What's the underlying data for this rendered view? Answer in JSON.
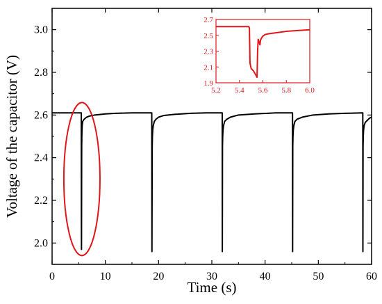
{
  "colors": {
    "main_series": "#000000",
    "inset_accent": "#e0161b",
    "background": "#ffffff"
  },
  "chart_data": [
    {
      "type": "line",
      "title": "",
      "xlabel": "Time (s)",
      "ylabel": "Voltage of the capacitor (V)",
      "xlim": [
        0,
        60
      ],
      "ylim": [
        1.9,
        3.1
      ],
      "xticks": [
        0,
        10,
        20,
        30,
        40,
        50,
        60
      ],
      "yticks": [
        2.0,
        2.2,
        2.4,
        2.6,
        2.8,
        3.0
      ],
      "xtick_labels": [
        "0",
        "10",
        "20",
        "30",
        "40",
        "50",
        "60"
      ],
      "ytick_labels": [
        "2.0",
        "2.2",
        "2.4",
        "2.6",
        "2.8",
        "3.0"
      ],
      "legend": "none",
      "grid": false,
      "series": [
        {
          "x": [
            0,
            5.2,
            5.48,
            5.5,
            5.52,
            5.55,
            5.56,
            5.6,
            5.65,
            5.75,
            6.0,
            6.5,
            7,
            8,
            10,
            12,
            15,
            18.72,
            18.75,
            18.8,
            18.84,
            18.9,
            19.0,
            19.2,
            19.5,
            20,
            21,
            23,
            26,
            29,
            31.95,
            31.97,
            32.0,
            32.04,
            32.1,
            32.2,
            32.4,
            32.8,
            33.5,
            35,
            38,
            42,
            45.15,
            45.17,
            45.2,
            45.24,
            45.3,
            45.4,
            45.6,
            46.0,
            47,
            49,
            52,
            55,
            58.35,
            58.37,
            58.4,
            58.44,
            58.5,
            58.6,
            58.8,
            59.2,
            59.6,
            60
          ],
          "y": [
            2.61,
            2.61,
            2.61,
            2.1,
            1.97,
            2.35,
            2.45,
            2.52,
            2.55,
            2.57,
            2.58,
            2.59,
            2.595,
            2.6,
            2.605,
            2.608,
            2.61,
            2.61,
            1.96,
            2.45,
            2.5,
            2.53,
            2.55,
            2.57,
            2.58,
            2.59,
            2.598,
            2.603,
            2.608,
            2.61,
            2.61,
            1.96,
            2.45,
            2.5,
            2.53,
            2.55,
            2.57,
            2.58,
            2.59,
            2.6,
            2.605,
            2.61,
            2.61,
            1.96,
            2.45,
            2.5,
            2.53,
            2.55,
            2.57,
            2.58,
            2.59,
            2.6,
            2.605,
            2.608,
            2.61,
            1.96,
            2.45,
            2.5,
            2.53,
            2.55,
            2.565,
            2.575,
            2.585,
            2.59
          ]
        }
      ],
      "annotations": [
        {
          "type": "ellipse-highlight",
          "x_center": 5.6,
          "y_center": 2.3,
          "color": "#e0161b"
        }
      ]
    },
    {
      "type": "line",
      "title": "",
      "xlabel": "",
      "ylabel": "",
      "xlim": [
        5.2,
        6.0
      ],
      "ylim": [
        1.9,
        2.7
      ],
      "xticks": [
        5.2,
        5.4,
        5.6,
        5.8,
        6.0
      ],
      "yticks": [
        1.9,
        2.1,
        2.3,
        2.5,
        2.7
      ],
      "xtick_labels": [
        "5.2",
        "5.4",
        "5.6",
        "5.8",
        "6.0"
      ],
      "ytick_labels": [
        "1.9",
        "2.1",
        "2.3",
        "2.5",
        "2.7"
      ],
      "legend": "none",
      "grid": false,
      "series": [
        {
          "x": [
            5.2,
            5.48,
            5.485,
            5.49,
            5.5,
            5.52,
            5.55,
            5.555,
            5.56,
            5.575,
            5.58,
            5.59,
            5.6,
            5.62,
            5.65,
            5.7,
            5.75,
            5.8,
            5.9,
            6.0
          ],
          "y": [
            2.61,
            2.61,
            2.59,
            2.15,
            2.08,
            2.05,
            1.97,
            2.3,
            2.45,
            2.38,
            2.44,
            2.47,
            2.49,
            2.51,
            2.52,
            2.53,
            2.54,
            2.55,
            2.56,
            2.57
          ]
        }
      ]
    }
  ]
}
